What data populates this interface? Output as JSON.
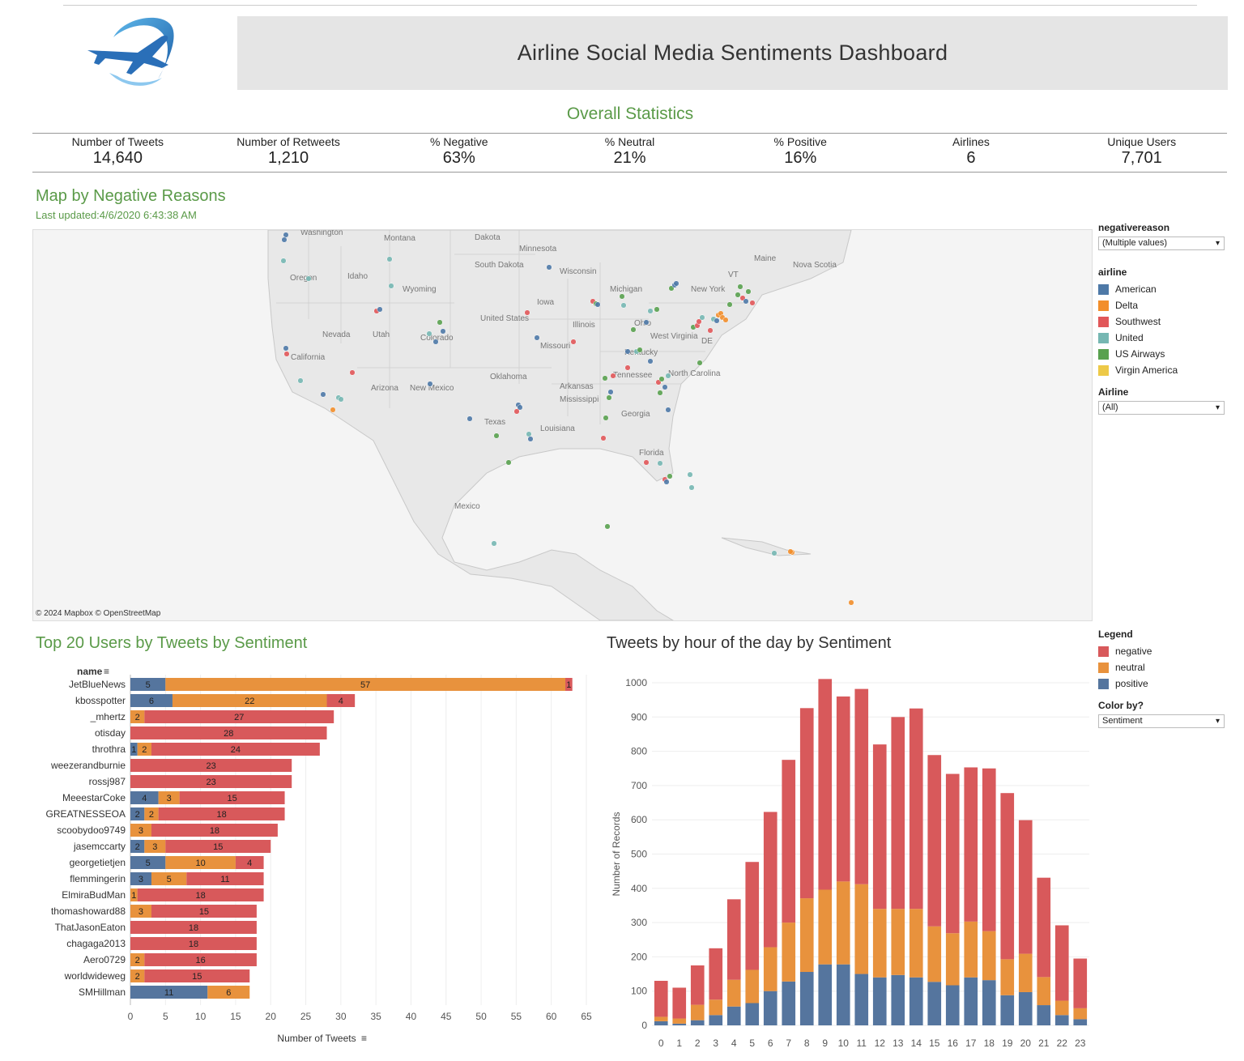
{
  "header": {
    "title": "Airline Social Media Sentiments Dashboard"
  },
  "stats": {
    "title": "Overall Statistics",
    "items": [
      {
        "label": "Number of Tweets",
        "value": "14,640"
      },
      {
        "label": "Number of Retweets",
        "value": "1,210"
      },
      {
        "label": "% Negative",
        "value": "63%"
      },
      {
        "label": "% Neutral",
        "value": "21%"
      },
      {
        "label": "% Positive",
        "value": "16%"
      },
      {
        "label": "Airlines",
        "value": "6"
      },
      {
        "label": "Unique Users",
        "value": "7,701"
      }
    ]
  },
  "map": {
    "title": "Map by Negative Reasons",
    "updated": "Last updated:4/6/2020 6:43:38 AM",
    "copyright": "© 2024 Mapbox  © OpenStreetMap",
    "labels": [
      "Washington",
      "Montana",
      "Dakota",
      "Minnesota",
      "Oregon",
      "Idaho",
      "Wyoming",
      "South Dakota",
      "Wisconsin",
      "Michigan",
      "New York",
      "Nova Scotia",
      "Maine",
      "VT",
      "Iowa",
      "United States",
      "Nevada",
      "Utah",
      "Colorado",
      "Illinois",
      "Ohio",
      "California",
      "Missouri",
      "West Virginia",
      "Kentucky",
      "DE",
      "Oklahoma",
      "Tennessee",
      "North Carolina",
      "Arizona",
      "New Mexico",
      "Arkansas",
      "Mississippi",
      "Georgia",
      "Texas",
      "Louisiana",
      "Florida",
      "Mexico"
    ]
  },
  "filters": {
    "negativereason": {
      "label": "negativereason",
      "value": "(Multiple values)"
    },
    "airline_legend": {
      "label": "airline",
      "items": [
        {
          "name": "American",
          "color": "#4e79a7"
        },
        {
          "name": "Delta",
          "color": "#f28e2b"
        },
        {
          "name": "Southwest",
          "color": "#e15759"
        },
        {
          "name": "United",
          "color": "#76b7b2"
        },
        {
          "name": "US Airways",
          "color": "#59a14f"
        },
        {
          "name": "Virgin America",
          "color": "#edc948"
        }
      ]
    },
    "airline_filter": {
      "label": "Airline",
      "value": "(All)"
    },
    "sentiment_legend": {
      "label": "Legend",
      "items": [
        {
          "name": "negative",
          "color": "#d8595b"
        },
        {
          "name": "neutral",
          "color": "#e8923d"
        },
        {
          "name": "positive",
          "color": "#55759e"
        }
      ]
    },
    "color_by": {
      "label": "Color by?",
      "value": "Sentiment"
    }
  },
  "chart_data": [
    {
      "type": "bar",
      "orientation": "horizontal",
      "stacked": true,
      "title": "Top 20 Users by Tweets by Sentiment",
      "ylabel": "name",
      "xlabel": "Number of Tweets",
      "xlim": [
        0,
        65
      ],
      "xticks": [
        0,
        5,
        10,
        15,
        20,
        25,
        30,
        35,
        40,
        45,
        50,
        55,
        60,
        65
      ],
      "categories": [
        "JetBlueNews",
        "kbosspotter",
        "_mhertz",
        "otisday",
        "throthra",
        "weezerandburnie",
        "rossj987",
        "MeeestarCoke",
        "GREATNESSEOA",
        "scoobydoo9749",
        "jasemccarty",
        "georgetietjen",
        "flemmingerin",
        "ElmiraBudMan",
        "thomashoward88",
        "ThatJasonEaton",
        "chagaga2013",
        "Aero0729",
        "worldwideweg",
        "SMHillman"
      ],
      "series": [
        {
          "name": "positive",
          "color": "#55759e",
          "values": [
            5,
            6,
            0,
            0,
            1,
            0,
            0,
            4,
            2,
            0,
            2,
            5,
            3,
            0,
            0,
            0,
            0,
            0,
            0,
            11
          ]
        },
        {
          "name": "neutral",
          "color": "#e8923d",
          "values": [
            57,
            22,
            2,
            0,
            2,
            0,
            0,
            3,
            2,
            3,
            3,
            10,
            5,
            1,
            3,
            0,
            0,
            2,
            2,
            6
          ]
        },
        {
          "name": "negative",
          "color": "#d8595b",
          "values": [
            1,
            4,
            27,
            28,
            24,
            23,
            23,
            15,
            18,
            18,
            15,
            4,
            11,
            18,
            15,
            18,
            18,
            16,
            15,
            0
          ]
        }
      ]
    },
    {
      "type": "bar",
      "stacked": true,
      "title": "Tweets by hour of the day  by Sentiment",
      "xlabel": "",
      "ylabel": "Number of Records",
      "ylim": [
        0,
        1000
      ],
      "yticks": [
        0,
        100,
        200,
        300,
        400,
        500,
        600,
        700,
        800,
        900,
        1000
      ],
      "categories": [
        "0",
        "1",
        "2",
        "3",
        "4",
        "5",
        "6",
        "7",
        "8",
        "9",
        "10",
        "11",
        "12",
        "13",
        "14",
        "15",
        "16",
        "17",
        "18",
        "19",
        "20",
        "21",
        "22",
        "23"
      ],
      "series": [
        {
          "name": "positive",
          "color": "#55759e",
          "values": [
            12,
            5,
            15,
            30,
            55,
            65,
            100,
            128,
            156,
            178,
            178,
            150,
            140,
            147,
            140,
            127,
            117,
            140,
            132,
            88,
            97,
            59,
            30,
            18
          ]
        },
        {
          "name": "neutral",
          "color": "#e8923d",
          "values": [
            13,
            15,
            45,
            45,
            78,
            97,
            128,
            172,
            215,
            218,
            242,
            262,
            200,
            193,
            200,
            162,
            152,
            163,
            143,
            105,
            112,
            82,
            42,
            32
          ]
        },
        {
          "name": "negative",
          "color": "#d8595b",
          "values": [
            105,
            90,
            115,
            150,
            235,
            315,
            395,
            475,
            555,
            615,
            540,
            570,
            480,
            560,
            585,
            500,
            465,
            450,
            475,
            485,
            390,
            290,
            220,
            145
          ]
        }
      ]
    }
  ]
}
